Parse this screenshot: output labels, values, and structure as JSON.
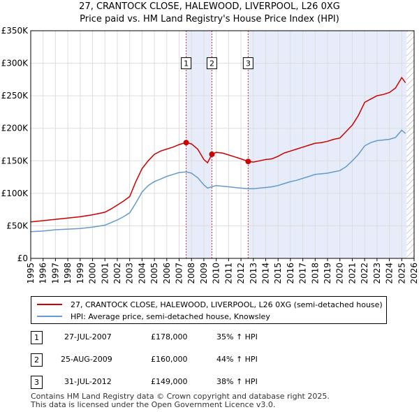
{
  "title": "27, CRANTOCK CLOSE, HALEWOOD, LIVERPOOL, L26 0XG",
  "subtitle": "Price paid vs. HM Land Registry's House Price Index (HPI)",
  "colors": {
    "property": "#cc0000",
    "hpi": "#6699cc",
    "shade": "#dde6f7",
    "grid": "#dddddd",
    "vline": "#cc3333",
    "marker_border": "#000000"
  },
  "legend": {
    "property_label": "27, CRANTOCK CLOSE, HALEWOOD, LIVERPOOL, L26 0XG (semi-detached house)",
    "hpi_label": "HPI: Average price, semi-detached house, Knowsley"
  },
  "transactions": [
    {
      "id": "1",
      "date": "27-JUL-2007",
      "price": "£178,000",
      "change": "35% ↑ HPI"
    },
    {
      "id": "2",
      "date": "25-AUG-2009",
      "price": "£160,000",
      "change": "44% ↑ HPI"
    },
    {
      "id": "3",
      "date": "31-JUL-2012",
      "price": "£149,000",
      "change": "38% ↑ HPI"
    }
  ],
  "footer": {
    "line1": "Contains HM Land Registry data © Crown copyright and database right 2025.",
    "line2": "This data is licensed under the Open Government Licence v3.0."
  },
  "chart_data": {
    "type": "line",
    "xlim": [
      1995,
      2026
    ],
    "ylim": [
      0,
      350000
    ],
    "y_ticks": [
      {
        "v": 0,
        "label": "£0"
      },
      {
        "v": 50000,
        "label": "£50K"
      },
      {
        "v": 100000,
        "label": "£100K"
      },
      {
        "v": 150000,
        "label": "£150K"
      },
      {
        "v": 200000,
        "label": "£200K"
      },
      {
        "v": 250000,
        "label": "£250K"
      },
      {
        "v": 300000,
        "label": "£300K"
      },
      {
        "v": 350000,
        "label": "£350K"
      }
    ],
    "x_ticks": [
      "1995",
      "1996",
      "1997",
      "1998",
      "1999",
      "2000",
      "2001",
      "2002",
      "2003",
      "2004",
      "2005",
      "2006",
      "2007",
      "2008",
      "2009",
      "2010",
      "2011",
      "2012",
      "2013",
      "2014",
      "2015",
      "2016",
      "2017",
      "2018",
      "2019",
      "2020",
      "2021",
      "2022",
      "2023",
      "2024",
      "2025",
      "2026"
    ],
    "grid": true,
    "shaded_ranges": [
      [
        2007.57,
        2009.65
      ],
      [
        2012.58,
        2025.4
      ]
    ],
    "hatched_from": 2025.4,
    "sales": [
      {
        "label": "1",
        "x": 2007.57,
        "y": 178000
      },
      {
        "label": "2",
        "x": 2009.65,
        "y": 160000
      },
      {
        "label": "3",
        "x": 2012.58,
        "y": 149000
      }
    ],
    "series": [
      {
        "name": "27, CRANTOCK CLOSE, HALEWOOD, LIVERPOOL, L26 0XG (semi-detached house)",
        "x": [
          1995,
          1996,
          1997,
          1998,
          1999,
          2000,
          2001,
          2001.5,
          2002,
          2002.5,
          2003,
          2003.5,
          2004,
          2004.5,
          2005,
          2005.5,
          2006,
          2006.5,
          2007,
          2007.57,
          2008,
          2008.5,
          2009,
          2009.3,
          2009.65,
          2010,
          2010.5,
          2011,
          2011.5,
          2012,
          2012.58,
          2013,
          2013.5,
          2014,
          2014.5,
          2015,
          2015.5,
          2016,
          2016.5,
          2017,
          2017.5,
          2018,
          2018.5,
          2019,
          2019.5,
          2020,
          2020.5,
          2021,
          2021.5,
          2022,
          2022.5,
          2023,
          2023.5,
          2024,
          2024.5,
          2025,
          2025.3
        ],
        "y": [
          56000,
          58000,
          60000,
          62000,
          64000,
          67000,
          71000,
          76000,
          82000,
          88000,
          95000,
          118000,
          138000,
          150000,
          160000,
          165000,
          168000,
          171000,
          175000,
          178000,
          176000,
          168000,
          152000,
          147000,
          160000,
          163000,
          162000,
          159000,
          156000,
          153000,
          149000,
          148000,
          150000,
          152000,
          153000,
          157000,
          162000,
          165000,
          168000,
          171000,
          174000,
          177000,
          178000,
          180000,
          183000,
          185000,
          195000,
          205000,
          220000,
          240000,
          245000,
          250000,
          252000,
          255000,
          262000,
          278000,
          270000
        ]
      },
      {
        "name": "HPI: Average price, semi-detached house, Knowsley",
        "x": [
          1995,
          1996,
          1997,
          1998,
          1999,
          2000,
          2001,
          2001.5,
          2002,
          2002.5,
          2003,
          2003.5,
          2004,
          2004.5,
          2005,
          2005.5,
          2006,
          2006.5,
          2007,
          2007.57,
          2008,
          2008.5,
          2009,
          2009.3,
          2009.65,
          2010,
          2010.5,
          2011,
          2011.5,
          2012,
          2012.58,
          2013,
          2013.5,
          2014,
          2014.5,
          2015,
          2015.5,
          2016,
          2016.5,
          2017,
          2017.5,
          2018,
          2018.5,
          2019,
          2019.5,
          2020,
          2020.5,
          2021,
          2021.5,
          2022,
          2022.5,
          2023,
          2023.5,
          2024,
          2024.5,
          2025,
          2025.3
        ],
        "y": [
          41000,
          42000,
          44000,
          45000,
          46000,
          48000,
          51000,
          55000,
          59000,
          64000,
          70000,
          85000,
          102000,
          112000,
          118000,
          122000,
          126000,
          129000,
          132000,
          133000,
          131000,
          124000,
          113000,
          108000,
          110000,
          112000,
          111000,
          110000,
          109000,
          108000,
          107000,
          107000,
          108000,
          109000,
          110000,
          112000,
          115000,
          118000,
          120000,
          123000,
          126000,
          129000,
          130000,
          131000,
          133000,
          135000,
          141000,
          150000,
          160000,
          173000,
          178000,
          181000,
          182000,
          183000,
          186000,
          197000,
          192000
        ]
      }
    ]
  }
}
